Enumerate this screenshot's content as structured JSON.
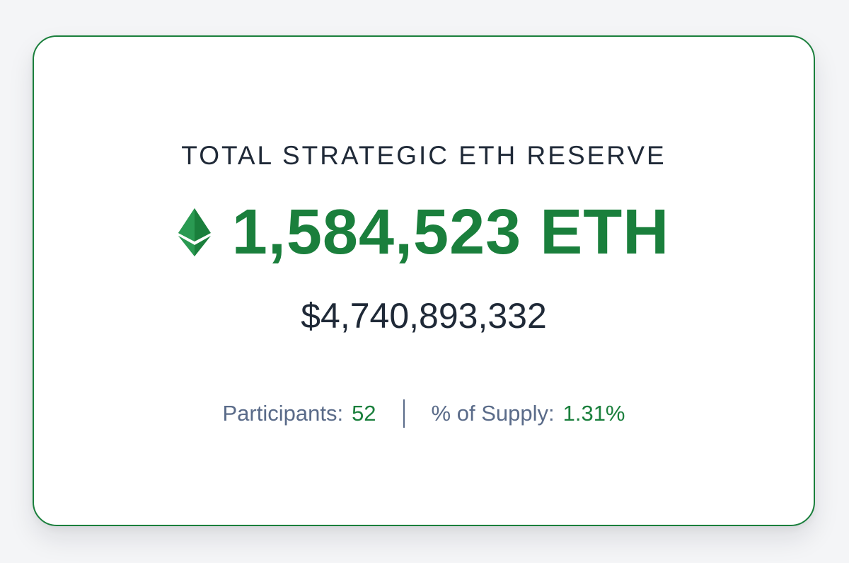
{
  "reserve": {
    "title": "TOTAL STRATEGIC ETH RESERVE",
    "eth_amount": "1,584,523 ETH",
    "usd_value": "$4,740,893,332",
    "icon": "ethereum-icon"
  },
  "stats": {
    "participants_label": "Participants:",
    "participants_value": "52",
    "supply_label": "% of Supply:",
    "supply_value": "1.31%"
  },
  "colors": {
    "accent": "#1a7f3c",
    "text_dark": "#1f2937",
    "text_muted": "#5a6b89",
    "background": "#f4f5f7"
  }
}
